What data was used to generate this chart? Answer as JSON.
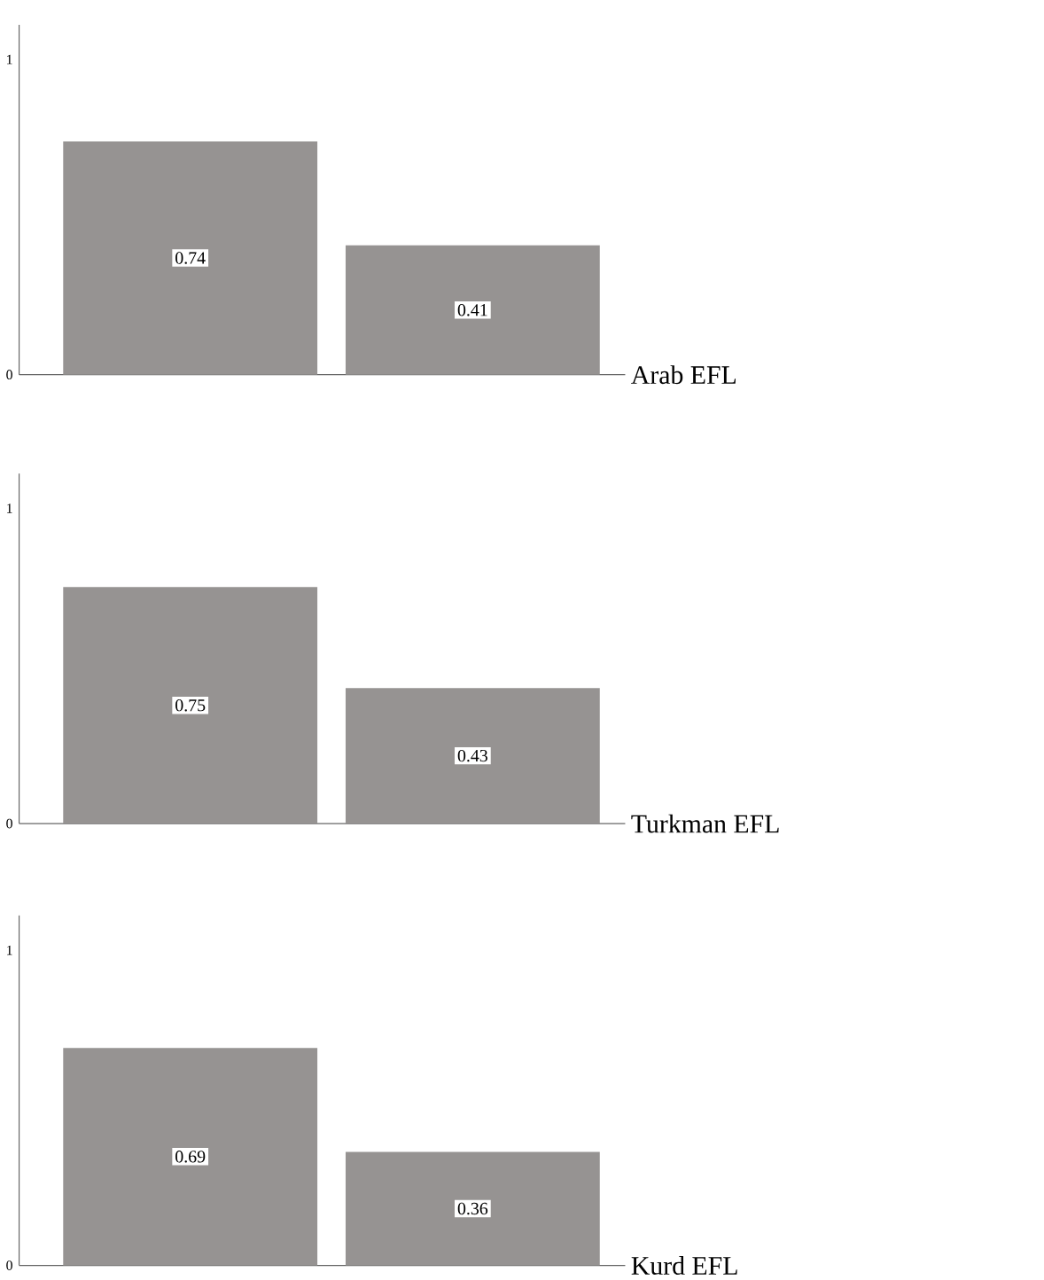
{
  "chart_data": [
    {
      "type": "bar",
      "categories": [
        null,
        null
      ],
      "values": [
        0.74,
        0.41
      ],
      "color": "#969392",
      "ylim": [
        0,
        1.11
      ],
      "yticks": [
        0,
        1
      ],
      "data_labels": true,
      "xlabel": "Arab EFL"
    },
    {
      "type": "bar",
      "categories": [
        null,
        null
      ],
      "values": [
        0.75,
        0.43
      ],
      "color": "#969392",
      "ylim": [
        0,
        1.11
      ],
      "yticks": [
        0,
        1
      ],
      "data_labels": true,
      "xlabel": "Turkman EFL"
    },
    {
      "type": "bar",
      "categories": [
        null,
        null
      ],
      "values": [
        0.69,
        0.36
      ],
      "color": "#969392",
      "ylim": [
        0,
        1.11
      ],
      "yticks": [
        0,
        1
      ],
      "data_labels": true,
      "xlabel": "Kurd EFL"
    }
  ]
}
